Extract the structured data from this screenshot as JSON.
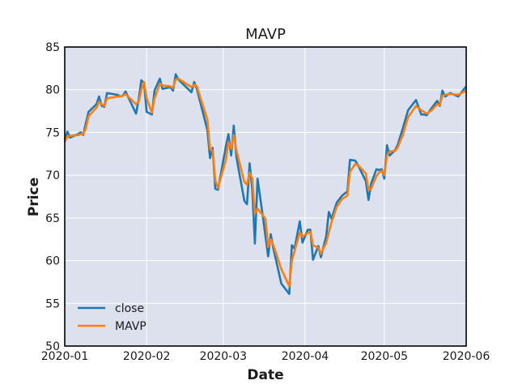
{
  "chart_data": {
    "type": "line",
    "title": "MAVP",
    "xlabel": "Date",
    "ylabel": "Price",
    "xlim": [
      "2020-01-01",
      "2020-06-01"
    ],
    "ylim": [
      50,
      85
    ],
    "x_ticks": [
      "2020-01-01",
      "2020-02-01",
      "2020-03-01",
      "2020-04-01",
      "2020-05-01",
      "2020-06-01"
    ],
    "x_tick_labels": [
      "2020-01",
      "2020-02",
      "2020-03",
      "2020-04",
      "2020-05",
      "2020-06"
    ],
    "y_ticks": [
      50,
      55,
      60,
      65,
      70,
      75,
      80,
      85
    ],
    "grid": true,
    "legend_position": "lower-left",
    "background_color": "#dce1ed",
    "series": [
      {
        "name": "close",
        "color": "#1f77b4",
        "points": [
          [
            "2020-01-01",
            74.2
          ],
          [
            "2020-01-02",
            75.1
          ],
          [
            "2020-01-03",
            74.4
          ],
          [
            "2020-01-06",
            74.8
          ],
          [
            "2020-01-07",
            75.0
          ],
          [
            "2020-01-08",
            74.7
          ],
          [
            "2020-01-09",
            76.1
          ],
          [
            "2020-01-10",
            77.4
          ],
          [
            "2020-01-13",
            78.3
          ],
          [
            "2020-01-14",
            79.2
          ],
          [
            "2020-01-15",
            78.1
          ],
          [
            "2020-01-16",
            78.0
          ],
          [
            "2020-01-17",
            79.6
          ],
          [
            "2020-01-21",
            79.4
          ],
          [
            "2020-01-22",
            79.2
          ],
          [
            "2020-01-23",
            79.3
          ],
          [
            "2020-01-24",
            79.8
          ],
          [
            "2020-01-28",
            77.2
          ],
          [
            "2020-01-29",
            78.9
          ],
          [
            "2020-01-30",
            81.1
          ],
          [
            "2020-01-31",
            80.8
          ],
          [
            "2020-02-01",
            77.4
          ],
          [
            "2020-02-03",
            77.1
          ],
          [
            "2020-02-04",
            79.9
          ],
          [
            "2020-02-06",
            81.3
          ],
          [
            "2020-02-07",
            80.1
          ],
          [
            "2020-02-10",
            80.3
          ],
          [
            "2020-02-11",
            79.9
          ],
          [
            "2020-02-12",
            81.8
          ],
          [
            "2020-02-13",
            81.2
          ],
          [
            "2020-02-18",
            79.7
          ],
          [
            "2020-02-19",
            80.9
          ],
          [
            "2020-02-20",
            80.1
          ],
          [
            "2020-02-24",
            75.3
          ],
          [
            "2020-02-25",
            72.0
          ],
          [
            "2020-02-26",
            73.2
          ],
          [
            "2020-02-27",
            68.4
          ],
          [
            "2020-02-28",
            68.3
          ],
          [
            "2020-03-02",
            73.4
          ],
          [
            "2020-03-03",
            74.8
          ],
          [
            "2020-03-04",
            72.3
          ],
          [
            "2020-03-05",
            75.8
          ],
          [
            "2020-03-06",
            72.1
          ],
          [
            "2020-03-09",
            67.0
          ],
          [
            "2020-03-10",
            66.6
          ],
          [
            "2020-03-11",
            71.4
          ],
          [
            "2020-03-12",
            68.3
          ],
          [
            "2020-03-13",
            62.0
          ],
          [
            "2020-03-14",
            69.6
          ],
          [
            "2020-03-16",
            65.2
          ],
          [
            "2020-03-18",
            60.5
          ],
          [
            "2020-03-19",
            63.1
          ],
          [
            "2020-03-20",
            61.4
          ],
          [
            "2020-03-23",
            57.3
          ],
          [
            "2020-03-26",
            56.1
          ],
          [
            "2020-03-27",
            61.8
          ],
          [
            "2020-03-28",
            61.4
          ],
          [
            "2020-03-30",
            64.6
          ],
          [
            "2020-03-31",
            62.1
          ],
          [
            "2020-04-02",
            63.6
          ],
          [
            "2020-04-03",
            63.6
          ],
          [
            "2020-04-04",
            60.1
          ],
          [
            "2020-04-06",
            61.7
          ],
          [
            "2020-04-07",
            60.4
          ],
          [
            "2020-04-09",
            62.9
          ],
          [
            "2020-04-10",
            65.7
          ],
          [
            "2020-04-11",
            64.9
          ],
          [
            "2020-04-13",
            66.8
          ],
          [
            "2020-04-15",
            67.6
          ],
          [
            "2020-04-17",
            68.1
          ],
          [
            "2020-04-18",
            71.8
          ],
          [
            "2020-04-20",
            71.7
          ],
          [
            "2020-04-21",
            71.2
          ],
          [
            "2020-04-24",
            69.3
          ],
          [
            "2020-04-25",
            67.1
          ],
          [
            "2020-04-26",
            69.0
          ],
          [
            "2020-04-28",
            70.7
          ],
          [
            "2020-04-29",
            70.6
          ],
          [
            "2020-04-30",
            70.7
          ],
          [
            "2020-05-01",
            69.6
          ],
          [
            "2020-05-02",
            73.5
          ],
          [
            "2020-05-03",
            72.3
          ],
          [
            "2020-05-05",
            72.9
          ],
          [
            "2020-05-06",
            73.5
          ],
          [
            "2020-05-08",
            75.5
          ],
          [
            "2020-05-10",
            77.6
          ],
          [
            "2020-05-13",
            78.8
          ],
          [
            "2020-05-15",
            77.1
          ],
          [
            "2020-05-16",
            77.1
          ],
          [
            "2020-05-17",
            77.0
          ],
          [
            "2020-05-19",
            77.9
          ],
          [
            "2020-05-21",
            78.7
          ],
          [
            "2020-05-22",
            78.1
          ],
          [
            "2020-05-23",
            79.9
          ],
          [
            "2020-05-24",
            79.2
          ],
          [
            "2020-05-26",
            79.6
          ],
          [
            "2020-05-29",
            79.2
          ],
          [
            "2020-06-01",
            80.4
          ]
        ]
      },
      {
        "name": "MAVP",
        "color": "#ff7f0e",
        "points": [
          [
            "2020-01-01",
            73.9
          ],
          [
            "2020-01-02",
            74.5
          ],
          [
            "2020-01-03",
            74.6
          ],
          [
            "2020-01-06",
            74.7
          ],
          [
            "2020-01-07",
            74.8
          ],
          [
            "2020-01-08",
            74.8
          ],
          [
            "2020-01-09",
            75.5
          ],
          [
            "2020-01-10",
            76.9
          ],
          [
            "2020-01-13",
            77.9
          ],
          [
            "2020-01-14",
            78.6
          ],
          [
            "2020-01-15",
            78.3
          ],
          [
            "2020-01-16",
            78.1
          ],
          [
            "2020-01-17",
            79.0
          ],
          [
            "2020-01-21",
            79.2
          ],
          [
            "2020-01-22",
            79.2
          ],
          [
            "2020-01-23",
            79.3
          ],
          [
            "2020-01-24",
            79.5
          ],
          [
            "2020-01-28",
            78.3
          ],
          [
            "2020-01-29",
            78.6
          ],
          [
            "2020-01-30",
            80.0
          ],
          [
            "2020-01-31",
            80.9
          ],
          [
            "2020-02-01",
            79.0
          ],
          [
            "2020-02-03",
            77.3
          ],
          [
            "2020-02-04",
            79.0
          ],
          [
            "2020-02-06",
            80.7
          ],
          [
            "2020-02-07",
            80.5
          ],
          [
            "2020-02-10",
            80.4
          ],
          [
            "2020-02-11",
            80.2
          ],
          [
            "2020-02-12",
            81.2
          ],
          [
            "2020-02-13",
            81.3
          ],
          [
            "2020-02-18",
            80.3
          ],
          [
            "2020-02-19",
            80.6
          ],
          [
            "2020-02-20",
            80.4
          ],
          [
            "2020-02-24",
            76.5
          ],
          [
            "2020-02-25",
            73.1
          ],
          [
            "2020-02-26",
            72.9
          ],
          [
            "2020-02-27",
            69.4
          ],
          [
            "2020-02-28",
            68.5
          ],
          [
            "2020-03-02",
            71.8
          ],
          [
            "2020-03-03",
            73.9
          ],
          [
            "2020-03-04",
            73.1
          ],
          [
            "2020-03-05",
            74.7
          ],
          [
            "2020-03-06",
            72.9
          ],
          [
            "2020-03-09",
            69.2
          ],
          [
            "2020-03-10",
            68.9
          ],
          [
            "2020-03-11",
            70.3
          ],
          [
            "2020-03-12",
            69.6
          ],
          [
            "2020-03-13",
            65.5
          ],
          [
            "2020-03-14",
            66.1
          ],
          [
            "2020-03-16",
            65.3
          ],
          [
            "2020-03-17",
            64.9
          ],
          [
            "2020-03-18",
            61.6
          ],
          [
            "2020-03-19",
            62.5
          ],
          [
            "2020-03-20",
            61.8
          ],
          [
            "2020-03-23",
            59.0
          ],
          [
            "2020-03-26",
            57.0
          ],
          [
            "2020-03-27",
            60.0
          ],
          [
            "2020-03-28",
            61.1
          ],
          [
            "2020-03-30",
            63.3
          ],
          [
            "2020-03-31",
            62.8
          ],
          [
            "2020-04-02",
            63.2
          ],
          [
            "2020-04-03",
            63.4
          ],
          [
            "2020-04-04",
            61.8
          ],
          [
            "2020-04-06",
            61.5
          ],
          [
            "2020-04-07",
            60.8
          ],
          [
            "2020-04-09",
            62.1
          ],
          [
            "2020-04-10",
            63.3
          ],
          [
            "2020-04-11",
            64.5
          ],
          [
            "2020-04-13",
            66.3
          ],
          [
            "2020-04-15",
            67.2
          ],
          [
            "2020-04-17",
            67.6
          ],
          [
            "2020-04-18",
            70.4
          ],
          [
            "2020-04-20",
            71.3
          ],
          [
            "2020-04-21",
            71.2
          ],
          [
            "2020-04-24",
            70.2
          ],
          [
            "2020-04-25",
            68.3
          ],
          [
            "2020-04-26",
            68.4
          ],
          [
            "2020-04-28",
            69.9
          ],
          [
            "2020-04-29",
            70.3
          ],
          [
            "2020-04-30",
            70.5
          ],
          [
            "2020-05-01",
            70.0
          ],
          [
            "2020-05-02",
            72.3
          ],
          [
            "2020-05-03",
            72.8
          ],
          [
            "2020-05-05",
            72.8
          ],
          [
            "2020-05-06",
            73.2
          ],
          [
            "2020-05-08",
            74.7
          ],
          [
            "2020-05-10",
            76.8
          ],
          [
            "2020-05-13",
            78.1
          ],
          [
            "2020-05-15",
            77.6
          ],
          [
            "2020-05-16",
            77.4
          ],
          [
            "2020-05-17",
            77.2
          ],
          [
            "2020-05-19",
            77.6
          ],
          [
            "2020-05-21",
            78.3
          ],
          [
            "2020-05-22",
            78.2
          ],
          [
            "2020-05-23",
            79.3
          ],
          [
            "2020-05-24",
            79.4
          ],
          [
            "2020-05-26",
            79.5
          ],
          [
            "2020-05-29",
            79.4
          ],
          [
            "2020-06-01",
            79.9
          ]
        ]
      }
    ]
  }
}
